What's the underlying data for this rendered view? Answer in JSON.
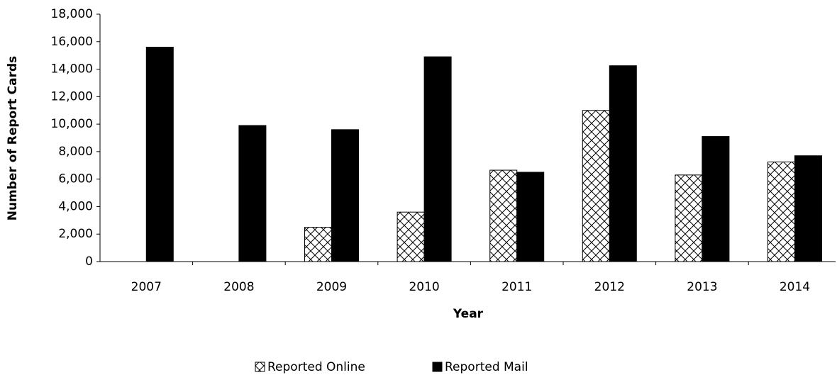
{
  "chart_data": {
    "type": "bar",
    "x_label": "Year",
    "y_label": "Number of Report Cards",
    "categories": [
      "2007",
      "2008",
      "2009",
      "2010",
      "2011",
      "2012",
      "2013",
      "2014"
    ],
    "series": [
      {
        "name": "Reported Online",
        "color": "#ffffff",
        "hatch": "cross",
        "values": [
          null,
          null,
          2500,
          3600,
          6650,
          11000,
          6300,
          7250
        ]
      },
      {
        "name": "Reported Mail",
        "color": "#000000",
        "values": [
          15600,
          9900,
          9600,
          14900,
          6500,
          14250,
          9100,
          7700
        ]
      }
    ],
    "ylim": [
      0,
      18000
    ],
    "yticks": [
      0,
      {
        "value": 2000,
        "label": "2,000"
      },
      {
        "value": 4000,
        "label": "4,000"
      },
      {
        "value": 6000,
        "label": "6,000"
      },
      {
        "value": 8000,
        "label": "8,000"
      },
      {
        "value": 10000,
        "label": "10,000"
      },
      {
        "value": 12000,
        "label": "12,000"
      },
      {
        "value": 14000,
        "label": "14,000"
      },
      {
        "value": 16000,
        "label": "16,000"
      },
      {
        "value": 18000,
        "label": "18,000"
      }
    ],
    "grid": false,
    "legend": "bottom"
  }
}
